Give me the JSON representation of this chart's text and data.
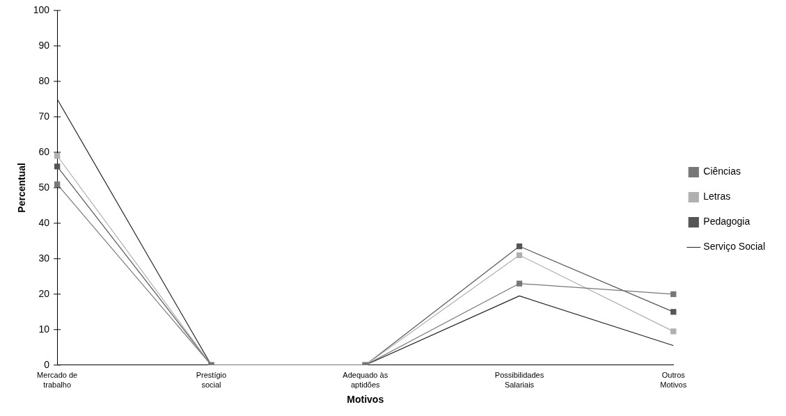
{
  "chart_data": {
    "type": "line",
    "xlabel": "Motivos",
    "ylabel": "Percentual",
    "categories": [
      "Mercado de trabalho",
      "Prestígio social",
      "Adequado às aptidões",
      "Possibilidades Salariais",
      "Outros Motivos"
    ],
    "series": [
      {
        "name": "Ciências",
        "color": "#777777",
        "marker": "square",
        "values": [
          51,
          0,
          0,
          23,
          20
        ]
      },
      {
        "name": "Letras",
        "color": "#b0b0b0",
        "marker": "square",
        "values": [
          59,
          0,
          0,
          31,
          9.5
        ]
      },
      {
        "name": "Pedagogia",
        "color": "#555555",
        "marker": "square",
        "values": [
          56,
          0,
          0,
          33.5,
          15
        ]
      },
      {
        "name": "Serviço Social",
        "color": "#222222",
        "marker": "none",
        "values": [
          75,
          0,
          0,
          19.5,
          5.5
        ]
      }
    ],
    "ylim": [
      0,
      100
    ],
    "yticks": [
      0,
      10,
      20,
      30,
      40,
      50,
      60,
      70,
      80,
      90,
      100
    ],
    "grid": false,
    "legend": "right",
    "line_style": "solid"
  }
}
